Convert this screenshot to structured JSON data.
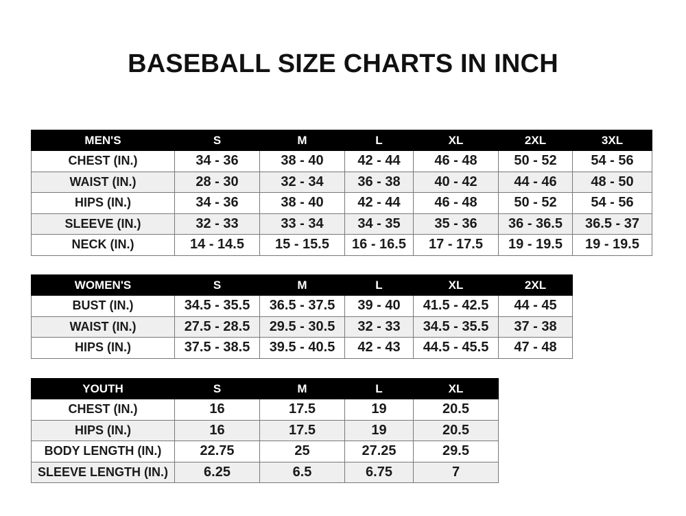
{
  "title": "BASEBALL SIZE CHARTS IN INCH",
  "tables": [
    {
      "header": [
        "MEN'S",
        "S",
        "M",
        "L",
        "XL",
        "2XL",
        "3XL"
      ],
      "rows": [
        [
          "CHEST (IN.)",
          "34 - 36",
          "38 - 40",
          "42 - 44",
          "46 - 48",
          "50 - 52",
          "54 - 56"
        ],
        [
          "WAIST (IN.)",
          "28 - 30",
          "32 - 34",
          "36 - 38",
          "40 - 42",
          "44 - 46",
          "48 - 50"
        ],
        [
          "HIPS (IN.)",
          "34 - 36",
          "38 - 40",
          "42 - 44",
          "46 - 48",
          "50 - 52",
          "54 - 56"
        ],
        [
          "SLEEVE (IN.)",
          "32 - 33",
          "33 - 34",
          "34 - 35",
          "35 - 36",
          "36 - 36.5",
          "36.5 - 37"
        ],
        [
          "NECK (IN.)",
          "14 - 14.5",
          "15 - 15.5",
          "16 - 16.5",
          "17 - 17.5",
          "19 - 19.5",
          "19 - 19.5"
        ]
      ]
    },
    {
      "header": [
        "WOMEN'S",
        "S",
        "M",
        "L",
        "XL",
        "2XL"
      ],
      "rows": [
        [
          "BUST (IN.)",
          "34.5 - 35.5",
          "36.5 - 37.5",
          "39 - 40",
          "41.5 - 42.5",
          "44 - 45"
        ],
        [
          "WAIST (IN.)",
          "27.5 - 28.5",
          "29.5 - 30.5",
          "32 - 33",
          "34.5 - 35.5",
          "37 - 38"
        ],
        [
          "HIPS (IN.)",
          "37.5 - 38.5",
          "39.5 - 40.5",
          "42 - 43",
          "44.5 - 45.5",
          "47 - 48"
        ]
      ]
    },
    {
      "header": [
        "YOUTH",
        "S",
        "M",
        "L",
        "XL"
      ],
      "rows": [
        [
          "CHEST (IN.)",
          "16",
          "17.5",
          "19",
          "20.5"
        ],
        [
          "HIPS (IN.)",
          "16",
          "17.5",
          "19",
          "20.5"
        ],
        [
          "BODY LENGTH (IN.)",
          "22.75",
          "25",
          "27.25",
          "29.5"
        ],
        [
          "SLEEVE LENGTH (IN.)",
          "6.25",
          "6.5",
          "6.75",
          "7"
        ]
      ]
    }
  ]
}
